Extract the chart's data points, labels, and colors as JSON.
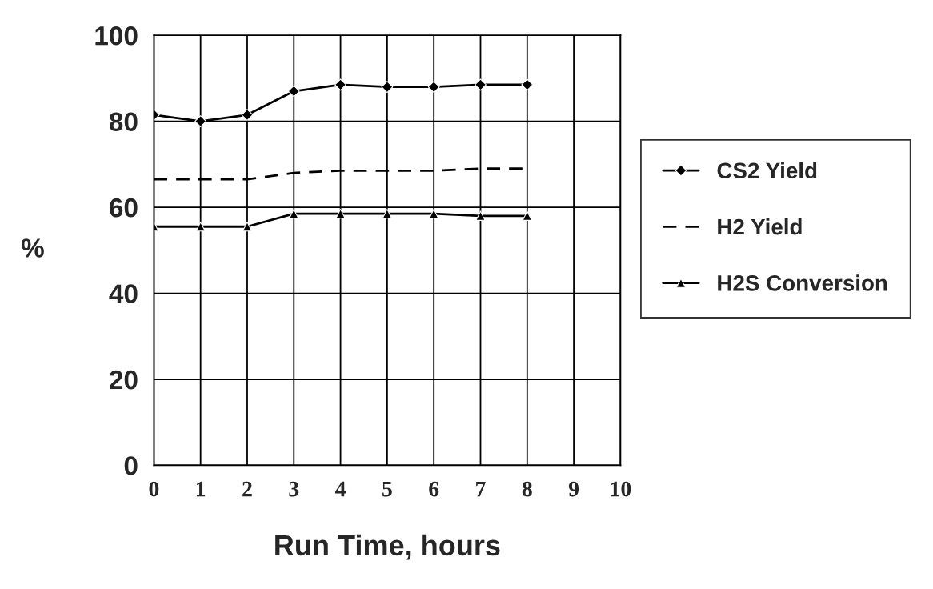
{
  "chart_data": {
    "type": "line",
    "xlabel": "Run Time, hours",
    "ylabel": "%",
    "x": [
      0,
      1,
      2,
      3,
      4,
      5,
      6,
      7,
      8
    ],
    "xlim": [
      0,
      10
    ],
    "xticks": [
      0,
      1,
      2,
      3,
      4,
      5,
      6,
      7,
      8,
      9,
      10
    ],
    "ylim": [
      0,
      100
    ],
    "yticks": [
      0,
      20,
      40,
      60,
      80,
      100
    ],
    "grid": true,
    "legend": "right",
    "series": [
      {
        "name": "CS2 Yield",
        "color": "#000000",
        "marker": "diamond",
        "line_style": "solid",
        "values": [
          81.5,
          80,
          81.5,
          87,
          88.5,
          88,
          88,
          88.5,
          88.5
        ]
      },
      {
        "name": "H2 Yield",
        "color": "#000000",
        "marker": "none",
        "line_style": "dashed",
        "values": [
          66.5,
          66.5,
          66.5,
          68,
          68.5,
          68.5,
          68.5,
          69,
          69
        ]
      },
      {
        "name": "H2S Conversion",
        "color": "#000000",
        "marker": "triangle",
        "line_style": "solid",
        "values": [
          55.5,
          55.5,
          55.5,
          58.5,
          58.5,
          58.5,
          58.5,
          58,
          58
        ]
      }
    ]
  }
}
